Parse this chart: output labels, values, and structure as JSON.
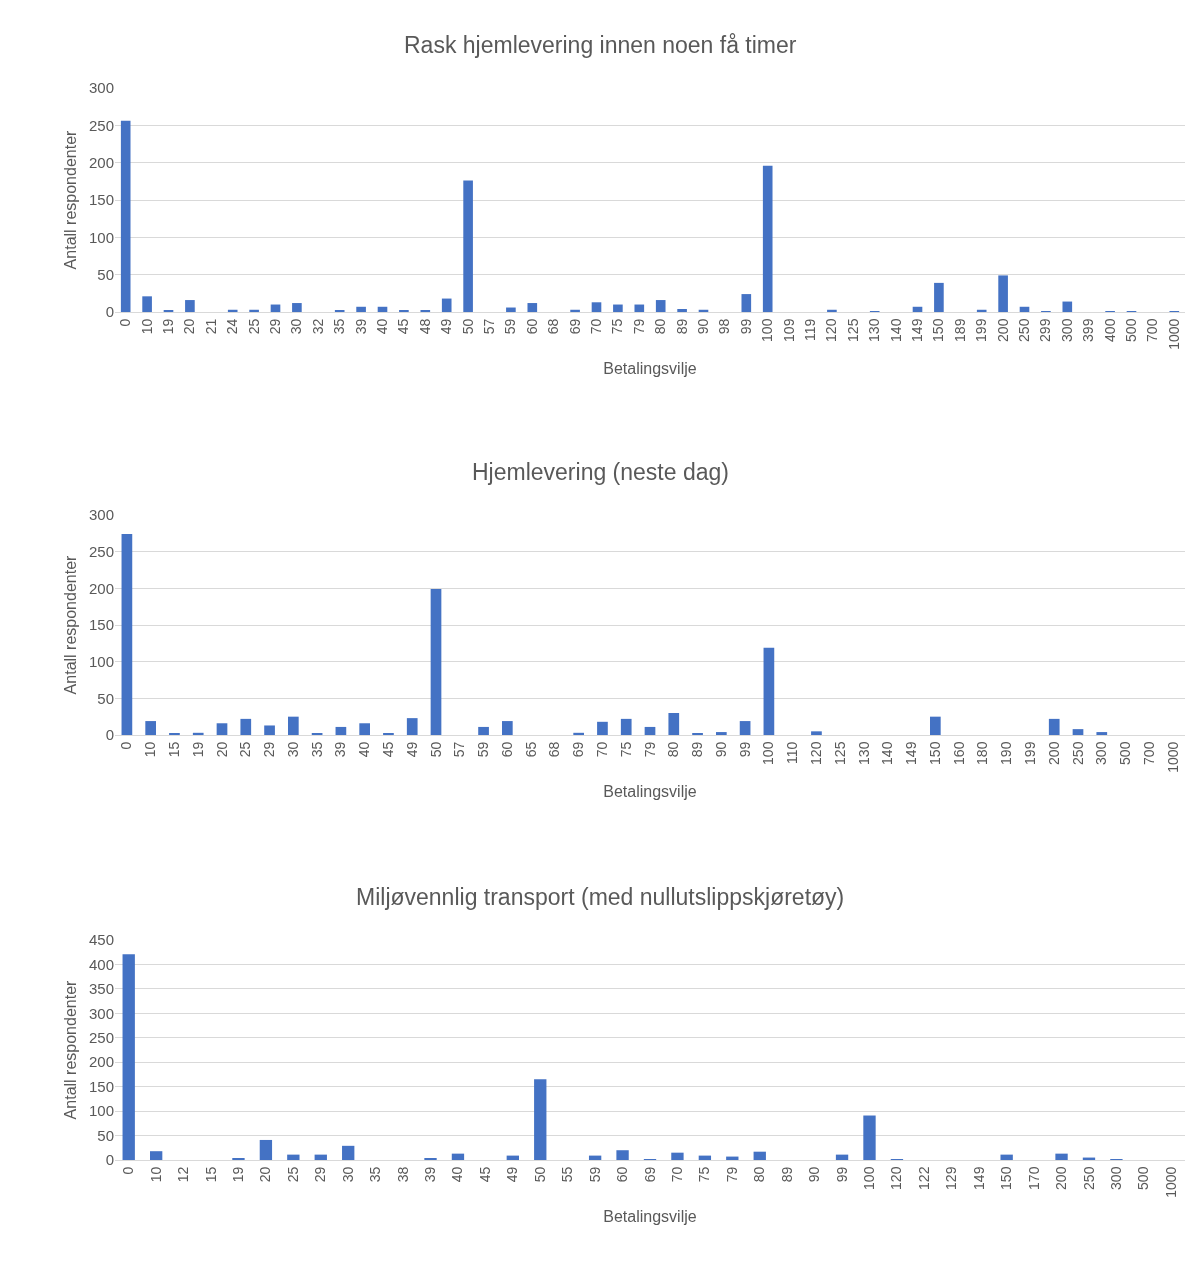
{
  "chart_data": [
    {
      "type": "bar",
      "title": "Rask hjemlevering innen noen få timer",
      "xlabel": "Betalingsvilje",
      "ylabel": "Antall respondenter",
      "color": "#4472c4",
      "ylim": [
        0,
        300
      ],
      "yticks": [
        0,
        50,
        100,
        150,
        200,
        250,
        300
      ],
      "grid": "y",
      "legend": false,
      "categories": [
        "0",
        "10",
        "19",
        "20",
        "21",
        "24",
        "25",
        "29",
        "30",
        "32",
        "35",
        "39",
        "40",
        "45",
        "48",
        "49",
        "50",
        "57",
        "59",
        "60",
        "68",
        "69",
        "70",
        "75",
        "79",
        "80",
        "89",
        "90",
        "98",
        "99",
        "100",
        "109",
        "119",
        "120",
        "125",
        "130",
        "140",
        "149",
        "150",
        "189",
        "199",
        "200",
        "250",
        "299",
        "300",
        "399",
        "400",
        "500",
        "700",
        "1000"
      ],
      "values": [
        256,
        21,
        2,
        16,
        0,
        3,
        3,
        10,
        12,
        0,
        2,
        7,
        7,
        2,
        2,
        18,
        176,
        0,
        6,
        12,
        0,
        3,
        13,
        10,
        10,
        16,
        4,
        3,
        0,
        24,
        196,
        0,
        0,
        3,
        0,
        1,
        0,
        7,
        39,
        0,
        3,
        49,
        7,
        1,
        14,
        0,
        1,
        1,
        0,
        1
      ]
    },
    {
      "type": "bar",
      "title": "Hjemlevering (neste dag)",
      "xlabel": "Betalingsvilje",
      "ylabel": "Antall respondenter",
      "color": "#4472c4",
      "ylim": [
        0,
        300
      ],
      "yticks": [
        0,
        50,
        100,
        150,
        200,
        250,
        300
      ],
      "grid": "y",
      "legend": false,
      "categories": [
        "0",
        "10",
        "15",
        "19",
        "20",
        "25",
        "29",
        "30",
        "35",
        "39",
        "40",
        "45",
        "49",
        "50",
        "57",
        "59",
        "60",
        "65",
        "68",
        "69",
        "70",
        "75",
        "79",
        "80",
        "89",
        "90",
        "99",
        "100",
        "110",
        "120",
        "125",
        "130",
        "140",
        "149",
        "150",
        "160",
        "180",
        "190",
        "199",
        "200",
        "250",
        "300",
        "500",
        "700",
        "1000"
      ],
      "values": [
        274,
        19,
        2,
        3,
        16,
        22,
        13,
        25,
        2,
        11,
        16,
        2,
        23,
        199,
        0,
        11,
        19,
        0,
        0,
        3,
        18,
        22,
        11,
        30,
        2,
        4,
        19,
        119,
        0,
        5,
        0,
        0,
        0,
        0,
        25,
        0,
        0,
        0,
        0,
        22,
        8,
        4,
        0,
        0,
        0
      ]
    },
    {
      "type": "bar",
      "title": "Miljøvennlig transport (med nullutslippskjøretøy)",
      "xlabel": "Betalingsvilje",
      "ylabel": "Antall respondenter",
      "color": "#4472c4",
      "ylim": [
        0,
        450
      ],
      "yticks": [
        0,
        50,
        100,
        150,
        200,
        250,
        300,
        350,
        400,
        450
      ],
      "grid": "y",
      "legend": false,
      "categories": [
        "0",
        "10",
        "12",
        "15",
        "19",
        "20",
        "25",
        "29",
        "30",
        "35",
        "38",
        "39",
        "40",
        "45",
        "49",
        "50",
        "55",
        "59",
        "60",
        "69",
        "70",
        "75",
        "79",
        "80",
        "89",
        "90",
        "99",
        "100",
        "120",
        "122",
        "129",
        "149",
        "150",
        "170",
        "200",
        "250",
        "300",
        "500",
        "1000"
      ],
      "values": [
        421,
        18,
        0,
        0,
        4,
        41,
        11,
        11,
        29,
        0,
        0,
        4,
        13,
        0,
        9,
        165,
        0,
        9,
        20,
        2,
        15,
        9,
        7,
        17,
        0,
        0,
        11,
        91,
        2,
        0,
        0,
        0,
        11,
        0,
        13,
        5,
        2,
        0,
        0
      ]
    }
  ]
}
